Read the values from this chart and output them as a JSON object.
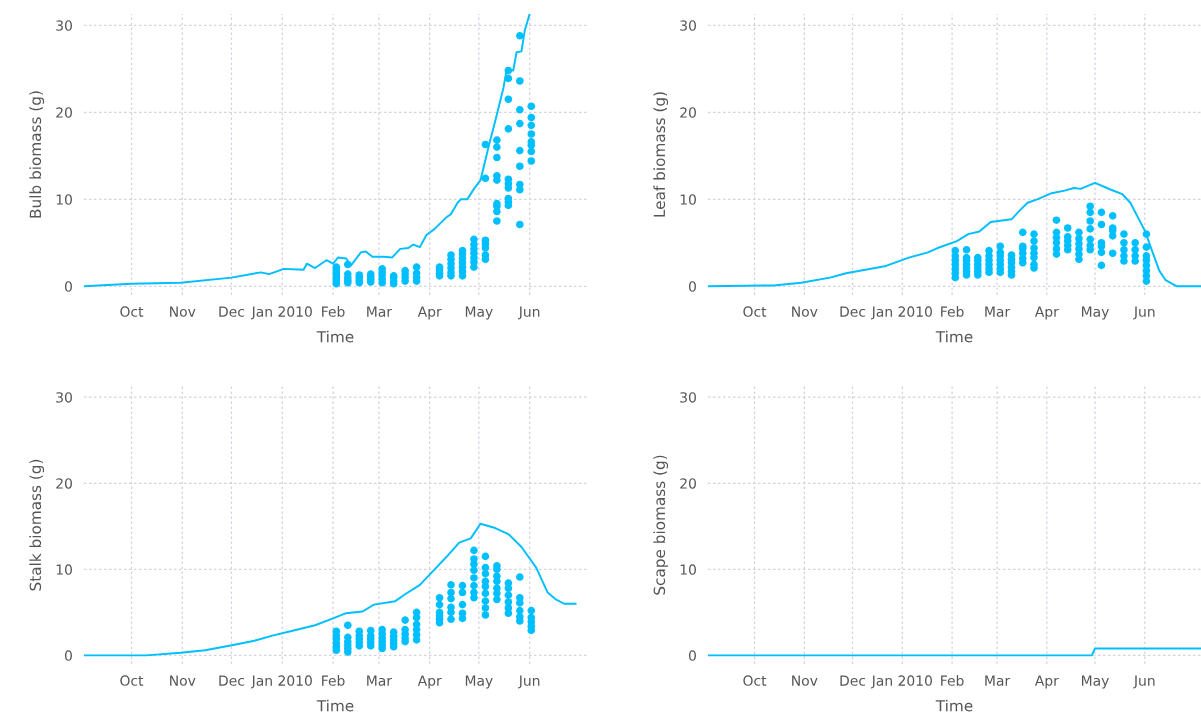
{
  "chart_data": [
    {
      "type": "scatter",
      "xlabel": "Time",
      "ylabel": "Bulb biomass (g)",
      "grid": true,
      "xlim": [
        "2009-09-02",
        "2010-07-06"
      ],
      "ylim": [
        -1,
        31.3
      ],
      "xticks": [
        {
          "value": "2009-10-01",
          "label": "Oct"
        },
        {
          "value": "2009-11-01",
          "label": "Nov"
        },
        {
          "value": "2009-12-01",
          "label": "Dec"
        },
        {
          "value": "2010-01-01",
          "label": "Jan 2010"
        },
        {
          "value": "2010-02-01",
          "label": "Feb"
        },
        {
          "value": "2010-03-01",
          "label": "Mar"
        },
        {
          "value": "2010-04-01",
          "label": "Apr"
        },
        {
          "value": "2010-05-01",
          "label": "May"
        },
        {
          "value": "2010-06-01",
          "label": "Jun"
        }
      ],
      "yticks": [
        0,
        10,
        20,
        30
      ],
      "series": [
        {
          "type": "line",
          "color": "#00bfff",
          "marker": "none",
          "line_style": "solid",
          "x": [
            "2009-09-02",
            "2009-10-01",
            "2009-10-31",
            "2009-12-01",
            "2009-12-19",
            "2009-12-24",
            "2010-01-02",
            "2010-01-14",
            "2010-01-16",
            "2010-01-21",
            "2010-01-28",
            "2010-02-01",
            "2010-02-04",
            "2010-02-09",
            "2010-02-12",
            "2010-02-18",
            "2010-02-21",
            "2010-02-25",
            "2010-03-04",
            "2010-03-09",
            "2010-03-14",
            "2010-03-19",
            "2010-03-22",
            "2010-03-26",
            "2010-03-30",
            "2010-04-04",
            "2010-04-11",
            "2010-04-14",
            "2010-04-18",
            "2010-04-20",
            "2010-04-24",
            "2010-04-28",
            "2010-05-02",
            "2010-05-07",
            "2010-05-11",
            "2010-05-16",
            "2010-05-18",
            "2010-05-22",
            "2010-05-24",
            "2010-05-27",
            "2010-05-29",
            "2010-06-01"
          ],
          "values": [
            0,
            0.3,
            0.4,
            1.0,
            1.6,
            1.4,
            2.0,
            1.9,
            2.6,
            2.1,
            3.0,
            2.6,
            3.3,
            3.2,
            2.4,
            3.9,
            4.0,
            3.4,
            3.4,
            3.3,
            4.3,
            4.4,
            4.8,
            4.5,
            5.9,
            6.6,
            7.9,
            8.3,
            9.6,
            10.0,
            10.0,
            11.2,
            12.2,
            16.1,
            19.0,
            22.8,
            24.9,
            24.8,
            26.9,
            27.0,
            29.4,
            31.3
          ]
        },
        {
          "type": "scatter",
          "color": "#00bfff",
          "marker": "circle",
          "x": [
            "2010-02-03",
            "2010-02-03",
            "2010-02-03",
            "2010-02-03",
            "2010-02-03",
            "2010-02-03",
            "2010-02-03",
            "2010-02-10",
            "2010-02-10",
            "2010-02-10",
            "2010-02-10",
            "2010-02-10",
            "2010-02-17",
            "2010-02-17",
            "2010-02-17",
            "2010-02-17",
            "2010-02-24",
            "2010-02-24",
            "2010-02-24",
            "2010-02-24",
            "2010-03-03",
            "2010-03-03",
            "2010-03-03",
            "2010-03-03",
            "2010-03-03",
            "2010-03-10",
            "2010-03-10",
            "2010-03-10",
            "2010-03-10",
            "2010-03-17",
            "2010-03-17",
            "2010-03-17",
            "2010-03-17",
            "2010-03-24",
            "2010-03-24",
            "2010-03-24",
            "2010-03-24",
            "2010-04-07",
            "2010-04-07",
            "2010-04-07",
            "2010-04-07",
            "2010-04-14",
            "2010-04-14",
            "2010-04-14",
            "2010-04-14",
            "2010-04-14",
            "2010-04-14",
            "2010-04-21",
            "2010-04-21",
            "2010-04-21",
            "2010-04-21",
            "2010-04-21",
            "2010-04-21",
            "2010-04-21",
            "2010-04-28",
            "2010-04-28",
            "2010-04-28",
            "2010-04-28",
            "2010-04-28",
            "2010-04-28",
            "2010-04-28",
            "2010-05-05",
            "2010-05-05",
            "2010-05-05",
            "2010-05-05",
            "2010-05-05",
            "2010-05-05",
            "2010-05-05",
            "2010-05-12",
            "2010-05-12",
            "2010-05-12",
            "2010-05-12",
            "2010-05-12",
            "2010-05-12",
            "2010-05-12",
            "2010-05-12",
            "2010-05-12",
            "2010-05-19",
            "2010-05-19",
            "2010-05-19",
            "2010-05-19",
            "2010-05-19",
            "2010-05-19",
            "2010-05-19",
            "2010-05-19",
            "2010-05-19",
            "2010-05-19",
            "2010-05-26",
            "2010-05-26",
            "2010-05-26",
            "2010-05-26",
            "2010-05-26",
            "2010-05-26",
            "2010-05-26",
            "2010-05-26",
            "2010-05-26",
            "2010-06-02",
            "2010-06-02",
            "2010-06-02",
            "2010-06-02",
            "2010-06-02",
            "2010-06-02",
            "2010-06-02",
            "2010-06-02"
          ],
          "values": [
            0.3,
            0.6,
            0.9,
            1.2,
            1.5,
            1.8,
            2.2,
            0.4,
            0.7,
            1.0,
            1.4,
            2.5,
            0.4,
            0.7,
            1.0,
            1.3,
            0.5,
            0.8,
            1.1,
            1.4,
            0.4,
            0.8,
            1.2,
            1.6,
            2.0,
            0.3,
            0.6,
            1.0,
            1.2,
            0.6,
            1.0,
            1.4,
            1.8,
            0.6,
            1.0,
            1.5,
            2.2,
            1.2,
            1.5,
            1.9,
            2.2,
            1.2,
            1.6,
            2.1,
            2.6,
            3.1,
            3.6,
            1.2,
            1.7,
            2.2,
            2.7,
            3.2,
            3.7,
            4.1,
            2.2,
            2.8,
            3.3,
            3.8,
            4.3,
            4.8,
            5.4,
            3.1,
            3.6,
            4.4,
            4.9,
            5.3,
            12.4,
            16.3,
            7.5,
            8.6,
            9.2,
            9.5,
            12.2,
            12.7,
            14.8,
            16.0,
            16.8,
            9.3,
            9.7,
            10.1,
            11.3,
            11.8,
            12.3,
            18.1,
            21.5,
            23.9,
            24.8,
            7.1,
            11.1,
            11.7,
            13.8,
            15.6,
            18.7,
            20.3,
            23.6,
            28.8,
            14.4,
            15.5,
            16.2,
            16.6,
            17.5,
            18.5,
            19.4,
            20.7
          ]
        }
      ]
    },
    {
      "type": "scatter",
      "xlabel": "Time",
      "ylabel": "Leaf biomass (g)",
      "grid": true,
      "xlim": [
        "2009-09-02",
        "2010-07-06"
      ],
      "ylim": [
        -1,
        31.3
      ],
      "xticks": [
        {
          "value": "2009-10-01",
          "label": "Oct"
        },
        {
          "value": "2009-11-01",
          "label": "Nov"
        },
        {
          "value": "2009-12-01",
          "label": "Dec"
        },
        {
          "value": "2010-01-01",
          "label": "Jan 2010"
        },
        {
          "value": "2010-02-01",
          "label": "Feb"
        },
        {
          "value": "2010-03-01",
          "label": "Mar"
        },
        {
          "value": "2010-04-01",
          "label": "Apr"
        },
        {
          "value": "2010-05-01",
          "label": "May"
        },
        {
          "value": "2010-06-01",
          "label": "Jun"
        }
      ],
      "yticks": [
        0,
        10,
        20,
        30
      ],
      "series": [
        {
          "type": "line",
          "color": "#00bfff",
          "marker": "none",
          "line_style": "solid",
          "x": [
            "2009-09-02",
            "2009-10-13",
            "2009-10-30",
            "2009-11-17",
            "2009-11-27",
            "2009-12-21",
            "2010-01-05",
            "2010-01-17",
            "2010-01-23",
            "2010-02-04",
            "2010-02-11",
            "2010-02-18",
            "2010-02-25",
            "2010-03-10",
            "2010-03-14",
            "2010-03-20",
            "2010-03-26",
            "2010-04-04",
            "2010-04-12",
            "2010-04-18",
            "2010-04-22",
            "2010-05-01",
            "2010-05-11",
            "2010-05-18",
            "2010-05-23",
            "2010-06-01",
            "2010-06-10",
            "2010-06-14",
            "2010-06-21",
            "2010-07-06"
          ],
          "values": [
            0,
            0.1,
            0.4,
            1.0,
            1.5,
            2.3,
            3.3,
            3.9,
            4.4,
            5.2,
            6.0,
            6.3,
            7.4,
            7.7,
            8.5,
            9.6,
            10.0,
            10.7,
            11.0,
            11.3,
            11.2,
            11.9,
            11.1,
            10.6,
            9.6,
            6.4,
            1.8,
            0.7,
            0,
            0
          ]
        },
        {
          "type": "scatter",
          "color": "#00bfff",
          "marker": "circle",
          "x": [
            "2010-02-03",
            "2010-02-03",
            "2010-02-03",
            "2010-02-03",
            "2010-02-03",
            "2010-02-03",
            "2010-02-03",
            "2010-02-10",
            "2010-02-10",
            "2010-02-10",
            "2010-02-10",
            "2010-02-10",
            "2010-02-10",
            "2010-02-10",
            "2010-02-17",
            "2010-02-17",
            "2010-02-17",
            "2010-02-17",
            "2010-02-17",
            "2010-02-17",
            "2010-02-24",
            "2010-02-24",
            "2010-02-24",
            "2010-02-24",
            "2010-02-24",
            "2010-02-24",
            "2010-03-03",
            "2010-03-03",
            "2010-03-03",
            "2010-03-03",
            "2010-03-03",
            "2010-03-03",
            "2010-03-03",
            "2010-03-10",
            "2010-03-10",
            "2010-03-10",
            "2010-03-10",
            "2010-03-10",
            "2010-03-10",
            "2010-03-17",
            "2010-03-17",
            "2010-03-17",
            "2010-03-17",
            "2010-03-17",
            "2010-03-17",
            "2010-03-24",
            "2010-03-24",
            "2010-03-24",
            "2010-03-24",
            "2010-03-24",
            "2010-03-24",
            "2010-03-24",
            "2010-04-07",
            "2010-04-07",
            "2010-04-07",
            "2010-04-07",
            "2010-04-07",
            "2010-04-07",
            "2010-04-14",
            "2010-04-14",
            "2010-04-14",
            "2010-04-14",
            "2010-04-14",
            "2010-04-21",
            "2010-04-21",
            "2010-04-21",
            "2010-04-21",
            "2010-04-21",
            "2010-04-21",
            "2010-04-28",
            "2010-04-28",
            "2010-04-28",
            "2010-04-28",
            "2010-04-28",
            "2010-04-28",
            "2010-04-28",
            "2010-05-05",
            "2010-05-05",
            "2010-05-05",
            "2010-05-05",
            "2010-05-05",
            "2010-05-05",
            "2010-05-12",
            "2010-05-12",
            "2010-05-12",
            "2010-05-12",
            "2010-05-12",
            "2010-05-19",
            "2010-05-19",
            "2010-05-19",
            "2010-05-19",
            "2010-05-19",
            "2010-05-26",
            "2010-05-26",
            "2010-05-26",
            "2010-05-26",
            "2010-06-02",
            "2010-06-02",
            "2010-06-02",
            "2010-06-02",
            "2010-06-02",
            "2010-06-02",
            "2010-06-02",
            "2010-06-02"
          ],
          "values": [
            1.0,
            1.5,
            2.0,
            2.5,
            3.0,
            3.5,
            4.1,
            1.3,
            1.7,
            2.1,
            2.5,
            3.0,
            3.3,
            4.2,
            1.3,
            1.7,
            2.1,
            2.5,
            3.0,
            3.3,
            1.6,
            2.0,
            2.5,
            3.0,
            3.5,
            4.1,
            1.6,
            2.0,
            2.5,
            3.0,
            3.5,
            3.9,
            4.6,
            1.3,
            1.7,
            2.2,
            2.7,
            3.1,
            3.6,
            2.7,
            3.2,
            3.8,
            4.3,
            4.6,
            6.2,
            2.1,
            2.5,
            3.3,
            3.8,
            4.4,
            5.2,
            6.0,
            3.7,
            4.3,
            5.0,
            5.6,
            6.2,
            7.6,
            4.2,
            4.7,
            5.2,
            5.7,
            6.7,
            3.1,
            3.7,
            4.3,
            4.9,
            5.5,
            6.2,
            4.2,
            4.7,
            5.4,
            6.6,
            7.5,
            8.5,
            9.2,
            2.4,
            3.9,
            4.6,
            5.0,
            7.1,
            8.5,
            3.8,
            5.8,
            6.4,
            6.7,
            8.1,
            2.9,
            3.5,
            4.2,
            5.0,
            6.0,
            2.9,
            3.5,
            4.2,
            5.0,
            0.6,
            1.2,
            1.8,
            2.4,
            3.0,
            3.5,
            4.5,
            6.0
          ]
        }
      ]
    },
    {
      "type": "scatter",
      "xlabel": "Time",
      "ylabel": "Stalk biomass (g)",
      "grid": true,
      "xlim": [
        "2009-09-02",
        "2010-07-06"
      ],
      "ylim": [
        -1,
        31.3
      ],
      "xticks": [
        {
          "value": "2009-10-01",
          "label": "Oct"
        },
        {
          "value": "2009-11-01",
          "label": "Nov"
        },
        {
          "value": "2009-12-01",
          "label": "Dec"
        },
        {
          "value": "2010-01-01",
          "label": "Jan 2010"
        },
        {
          "value": "2010-02-01",
          "label": "Feb"
        },
        {
          "value": "2010-03-01",
          "label": "Mar"
        },
        {
          "value": "2010-04-01",
          "label": "Apr"
        },
        {
          "value": "2010-05-01",
          "label": "May"
        },
        {
          "value": "2010-06-01",
          "label": "Jun"
        }
      ],
      "yticks": [
        0,
        10,
        20,
        30
      ],
      "series": [
        {
          "type": "line",
          "color": "#00bfff",
          "marker": "none",
          "line_style": "solid",
          "x": [
            "2009-09-02",
            "2009-10-10",
            "2009-10-31",
            "2009-11-15",
            "2009-12-02",
            "2009-12-15",
            "2009-12-26",
            "2010-01-08",
            "2010-01-21",
            "2010-02-01",
            "2010-02-09",
            "2010-02-19",
            "2010-02-26",
            "2010-03-11",
            "2010-03-17",
            "2010-03-26",
            "2010-04-03",
            "2010-04-11",
            "2010-04-19",
            "2010-04-26",
            "2010-05-02",
            "2010-05-11",
            "2010-05-19",
            "2010-05-27",
            "2010-06-05",
            "2010-06-12",
            "2010-06-17",
            "2010-06-22",
            "2010-06-29"
          ],
          "values": [
            0,
            0,
            0.3,
            0.6,
            1.2,
            1.7,
            2.3,
            2.9,
            3.5,
            4.3,
            4.9,
            5.1,
            5.9,
            6.3,
            7.1,
            8.2,
            9.8,
            11.4,
            13.1,
            13.6,
            15.3,
            14.8,
            14.1,
            12.6,
            10.2,
            7.3,
            6.5,
            6.0,
            6.0
          ]
        },
        {
          "type": "scatter",
          "color": "#00bfff",
          "marker": "circle",
          "x": [
            "2010-02-03",
            "2010-02-03",
            "2010-02-03",
            "2010-02-03",
            "2010-02-03",
            "2010-02-03",
            "2010-02-10",
            "2010-02-10",
            "2010-02-10",
            "2010-02-10",
            "2010-02-10",
            "2010-02-10",
            "2010-02-17",
            "2010-02-17",
            "2010-02-17",
            "2010-02-17",
            "2010-02-17",
            "2010-02-24",
            "2010-02-24",
            "2010-02-24",
            "2010-02-24",
            "2010-02-24",
            "2010-03-03",
            "2010-03-03",
            "2010-03-03",
            "2010-03-03",
            "2010-03-03",
            "2010-03-03",
            "2010-03-10",
            "2010-03-10",
            "2010-03-10",
            "2010-03-10",
            "2010-03-10",
            "2010-03-17",
            "2010-03-17",
            "2010-03-17",
            "2010-03-17",
            "2010-03-17",
            "2010-03-24",
            "2010-03-24",
            "2010-03-24",
            "2010-03-24",
            "2010-03-24",
            "2010-03-24",
            "2010-04-07",
            "2010-04-07",
            "2010-04-07",
            "2010-04-07",
            "2010-04-07",
            "2010-04-07",
            "2010-04-14",
            "2010-04-14",
            "2010-04-14",
            "2010-04-14",
            "2010-04-14",
            "2010-04-14",
            "2010-04-21",
            "2010-04-21",
            "2010-04-21",
            "2010-04-21",
            "2010-04-21",
            "2010-04-28",
            "2010-04-28",
            "2010-04-28",
            "2010-04-28",
            "2010-04-28",
            "2010-04-28",
            "2010-04-28",
            "2010-04-28",
            "2010-05-05",
            "2010-05-05",
            "2010-05-05",
            "2010-05-05",
            "2010-05-05",
            "2010-05-05",
            "2010-05-05",
            "2010-05-05",
            "2010-05-05",
            "2010-05-12",
            "2010-05-12",
            "2010-05-12",
            "2010-05-12",
            "2010-05-12",
            "2010-05-12",
            "2010-05-12",
            "2010-05-19",
            "2010-05-19",
            "2010-05-19",
            "2010-05-19",
            "2010-05-19",
            "2010-05-19",
            "2010-05-26",
            "2010-05-26",
            "2010-05-26",
            "2010-05-26",
            "2010-05-26",
            "2010-05-26",
            "2010-06-02",
            "2010-06-02",
            "2010-06-02",
            "2010-06-02",
            "2010-06-02"
          ],
          "values": [
            0.6,
            1.0,
            1.4,
            1.9,
            2.3,
            2.8,
            0.4,
            0.8,
            1.2,
            1.6,
            2.1,
            3.5,
            1.1,
            1.5,
            1.9,
            2.3,
            2.8,
            1.1,
            1.5,
            1.9,
            2.3,
            2.9,
            0.8,
            1.2,
            1.6,
            2.0,
            2.5,
            3.0,
            1.0,
            1.4,
            1.8,
            2.2,
            2.7,
            1.6,
            2.0,
            2.5,
            3.0,
            4.1,
            1.8,
            2.4,
            3.0,
            3.6,
            4.4,
            5.0,
            3.8,
            4.2,
            4.6,
            5.0,
            5.9,
            6.7,
            4.2,
            5.0,
            5.6,
            6.6,
            7.3,
            8.2,
            4.3,
            4.9,
            5.9,
            7.3,
            8.1,
            6.7,
            7.3,
            8.1,
            9.0,
            9.9,
            10.6,
            11.2,
            12.2,
            4.7,
            5.5,
            6.3,
            7.2,
            8.0,
            8.6,
            9.5,
            10.2,
            11.5,
            6.5,
            7.2,
            7.8,
            8.6,
            9.2,
            10.0,
            10.4,
            4.9,
            5.5,
            6.2,
            7.0,
            7.8,
            8.4,
            4.0,
            4.5,
            5.2,
            6.1,
            6.7,
            9.1,
            2.9,
            3.4,
            3.9,
            4.4,
            5.2
          ]
        }
      ]
    },
    {
      "type": "line",
      "xlabel": "Time",
      "ylabel": "Scape biomass (g)",
      "grid": true,
      "xlim": [
        "2009-09-02",
        "2010-07-06"
      ],
      "ylim": [
        -1,
        31.3
      ],
      "xticks": [
        {
          "value": "2009-10-01",
          "label": "Oct"
        },
        {
          "value": "2009-11-01",
          "label": "Nov"
        },
        {
          "value": "2009-12-01",
          "label": "Dec"
        },
        {
          "value": "2010-01-01",
          "label": "Jan 2010"
        },
        {
          "value": "2010-02-01",
          "label": "Feb"
        },
        {
          "value": "2010-03-01",
          "label": "Mar"
        },
        {
          "value": "2010-04-01",
          "label": "Apr"
        },
        {
          "value": "2010-05-01",
          "label": "May"
        },
        {
          "value": "2010-06-01",
          "label": "Jun"
        }
      ],
      "yticks": [
        0,
        10,
        20,
        30
      ],
      "series": [
        {
          "color": "#00bfff",
          "marker": "none",
          "line_style": "solid",
          "x": [
            "2009-09-02",
            "2010-04-29",
            "2010-05-01",
            "2010-07-06"
          ],
          "values": [
            0,
            0,
            0.8,
            0.8
          ]
        }
      ]
    }
  ]
}
